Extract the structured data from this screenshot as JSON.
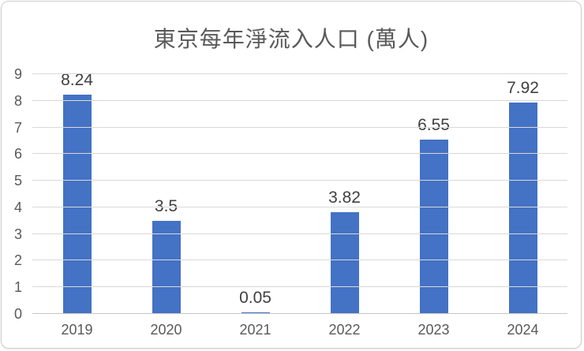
{
  "chart_data": {
    "type": "bar",
    "title": "東京每年淨流入人口 (萬人)",
    "categories": [
      "2019",
      "2020",
      "2021",
      "2022",
      "2023",
      "2024"
    ],
    "values": [
      8.24,
      3.5,
      0.05,
      3.82,
      6.55,
      7.92
    ],
    "data_labels": [
      "8.24",
      "3.5",
      "0.05",
      "3.82",
      "6.55",
      "7.92"
    ],
    "xlabel": "",
    "ylabel": "",
    "ylim": [
      0,
      9
    ],
    "ytick_step": 1,
    "ytick_labels": [
      "0",
      "1",
      "2",
      "3",
      "4",
      "5",
      "6",
      "7",
      "8",
      "9"
    ],
    "grid": "horizontal",
    "legend": "none",
    "colors": {
      "bar": "#4472C4",
      "gridline": "#D9D9D9",
      "axis_line": "#C6C6C6",
      "title_text": "#595959",
      "tick_text": "#595959",
      "data_label_text": "#404040",
      "card_border": "#D0CECE",
      "background": "#FFFFFF"
    }
  }
}
